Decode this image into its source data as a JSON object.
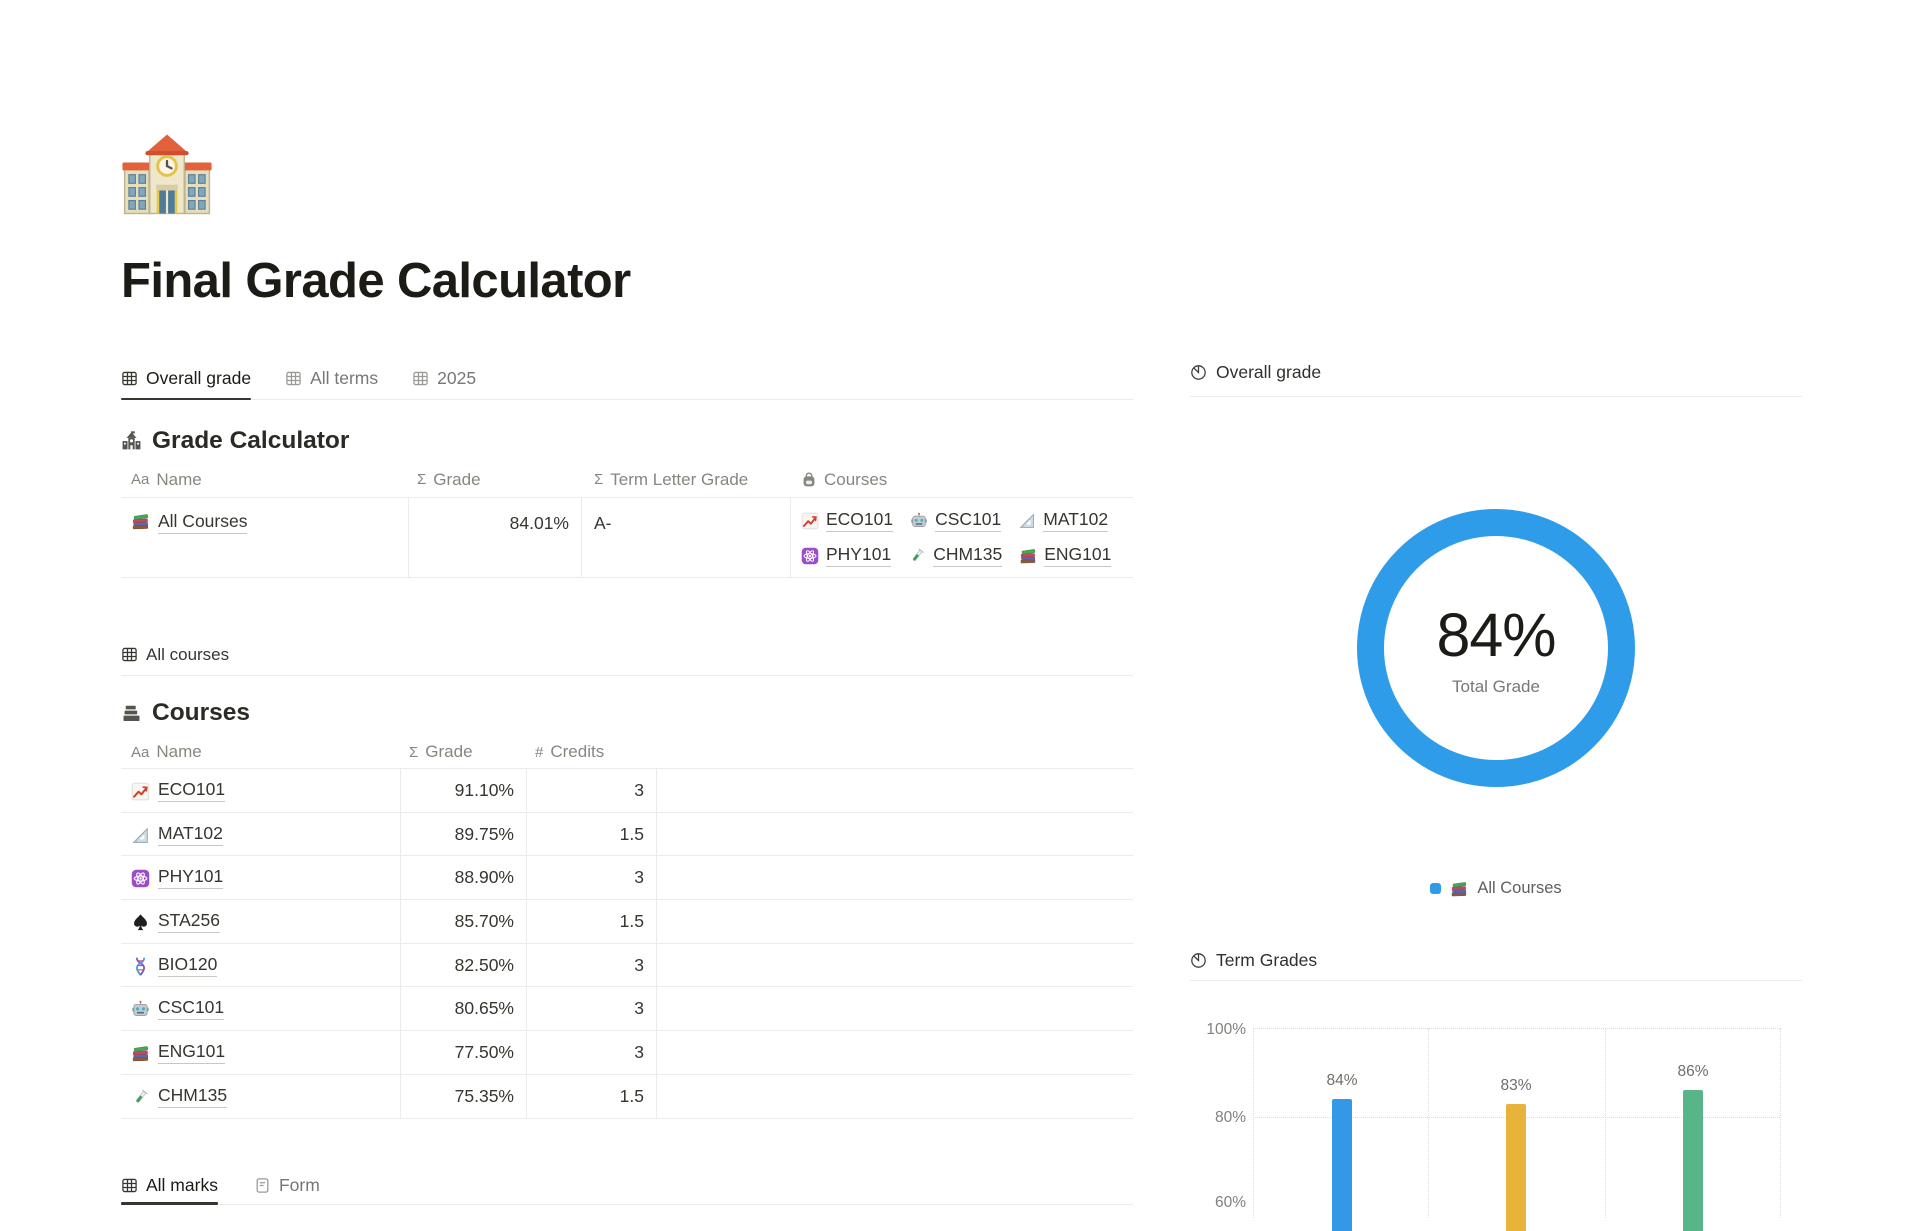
{
  "page": {
    "icon": "school",
    "title": "Final Grade Calculator"
  },
  "view_tabs": {
    "items": [
      {
        "label": "Overall grade",
        "icon": "table"
      },
      {
        "label": "All terms",
        "icon": "table"
      },
      {
        "label": "2025",
        "icon": "table"
      }
    ]
  },
  "grade_calculator": {
    "icon": "school-mono",
    "title": "Grade Calculator",
    "columns": {
      "name": {
        "icon_label": "Aa",
        "label": "Name"
      },
      "grade": {
        "icon_label": "Σ",
        "label": "Grade"
      },
      "term_letter_grade": {
        "icon_label": "Σ",
        "label": "Term Letter Grade"
      },
      "courses": {
        "icon": "backpack",
        "label": "Courses"
      }
    },
    "row": {
      "icon": "books",
      "name": "All Courses",
      "grade": "84.01%",
      "term_letter_grade": "A-",
      "courses": [
        {
          "icon": "chart-increasing",
          "label": "ECO101"
        },
        {
          "icon": "robot",
          "label": "CSC101"
        },
        {
          "icon": "triangular-ruler",
          "label": "MAT102"
        },
        {
          "icon": "atom",
          "label": "PHY101"
        },
        {
          "icon": "test-tube",
          "label": "CHM135"
        },
        {
          "icon": "books",
          "label": "ENG101"
        }
      ]
    }
  },
  "all_courses_view": {
    "icon": "table",
    "label": "All courses"
  },
  "courses_section": {
    "icon": "stack-mono",
    "title": "Courses",
    "columns": {
      "name": {
        "icon_label": "Aa",
        "label": "Name"
      },
      "grade": {
        "icon_label": "Σ",
        "label": "Grade"
      },
      "credits": {
        "icon_label": "#",
        "label": "Credits"
      }
    },
    "rows": [
      {
        "icon": "chart-increasing",
        "name": "ECO101",
        "grade": "91.10%",
        "credits": "3"
      },
      {
        "icon": "triangular-ruler",
        "name": "MAT102",
        "grade": "89.75%",
        "credits": "1.5"
      },
      {
        "icon": "atom",
        "name": "PHY101",
        "grade": "88.90%",
        "credits": "3"
      },
      {
        "icon": "spade",
        "name": "STA256",
        "grade": "85.70%",
        "credits": "1.5"
      },
      {
        "icon": "dna",
        "name": "BIO120",
        "grade": "82.50%",
        "credits": "3"
      },
      {
        "icon": "robot",
        "name": "CSC101",
        "grade": "80.65%",
        "credits": "3"
      },
      {
        "icon": "books",
        "name": "ENG101",
        "grade": "77.50%",
        "credits": "3"
      },
      {
        "icon": "test-tube",
        "name": "CHM135",
        "grade": "75.35%",
        "credits": "1.5"
      }
    ]
  },
  "marks_tabs": {
    "items": [
      {
        "label": "All marks",
        "icon": "table"
      },
      {
        "label": "Form",
        "icon": "form"
      }
    ]
  },
  "overall_widget": {
    "icon": "pie",
    "title": "Overall grade",
    "legend": {
      "color": "#2E9CE9",
      "icon": "books",
      "label": "All Courses"
    }
  },
  "term_widget": {
    "icon": "pie",
    "title": "Term Grades"
  },
  "chart_data": [
    {
      "type": "donut",
      "title": "Overall grade",
      "value": 84,
      "value_label": "84%",
      "center_label": "Total Grade",
      "color": "#2E9CE9",
      "legend": [
        "All Courses"
      ],
      "legend_position": "bottom"
    },
    {
      "type": "bar",
      "title": "Term Grades",
      "categories": [
        "",
        "",
        ""
      ],
      "values": [
        84,
        83,
        86
      ],
      "value_labels": [
        "84%",
        "83%",
        "86%"
      ],
      "colors": [
        "#3398E6",
        "#E8B33B",
        "#58B588"
      ],
      "y_ticks": [
        "100%",
        "80%",
        "60%"
      ],
      "ylim": [
        60,
        100
      ],
      "grid": "dotted"
    }
  ]
}
